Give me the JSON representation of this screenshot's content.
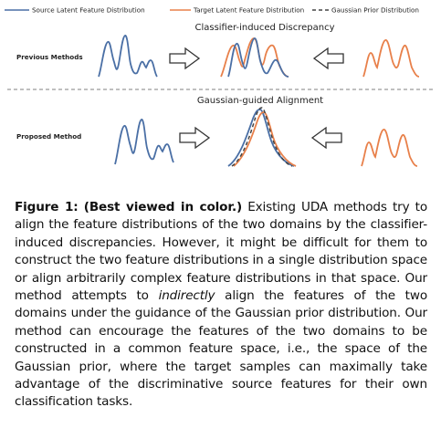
{
  "figure": {
    "legend": {
      "source": "Source Latent Feature Distribution",
      "target": "Target Latent Feature Distribution",
      "prior": "Gaussian Prior Distribution"
    },
    "colors": {
      "source": "#4a6fa5",
      "target": "#e8804a",
      "prior": "#444444",
      "arrow": "#333333"
    },
    "top_row": {
      "label": "Previous Methods",
      "title": "Classifier-induced Discrepancy"
    },
    "bottom_row": {
      "label": "Proposed Method",
      "title": "Gaussian-guided Alignment"
    },
    "arrows": [
      "right-arrow",
      "left-arrow",
      "right-arrow",
      "left-arrow"
    ]
  },
  "caption": {
    "label": "Figure 1:",
    "bold": "(Best viewed in color.)",
    "part1": " Existing UDA methods try to align the feature distributions of the two domains by the classifier-induced discrepancies. However, it might be difficult for them to construct the two feature distributions in a single distribution space or align arbitrarily complex feature distributions in that space.  Our method attempts to ",
    "emphasis": "indirectly",
    "part2": " align the features of the two domains under the guidance of the Gaussian prior distribution.  Our method can encourage the features of the two domains to be constructed in a common feature space, i.e., the space of the Gaussian prior, where the target samples can maximally take advantage of the discriminative source features for their own classification tasks."
  }
}
